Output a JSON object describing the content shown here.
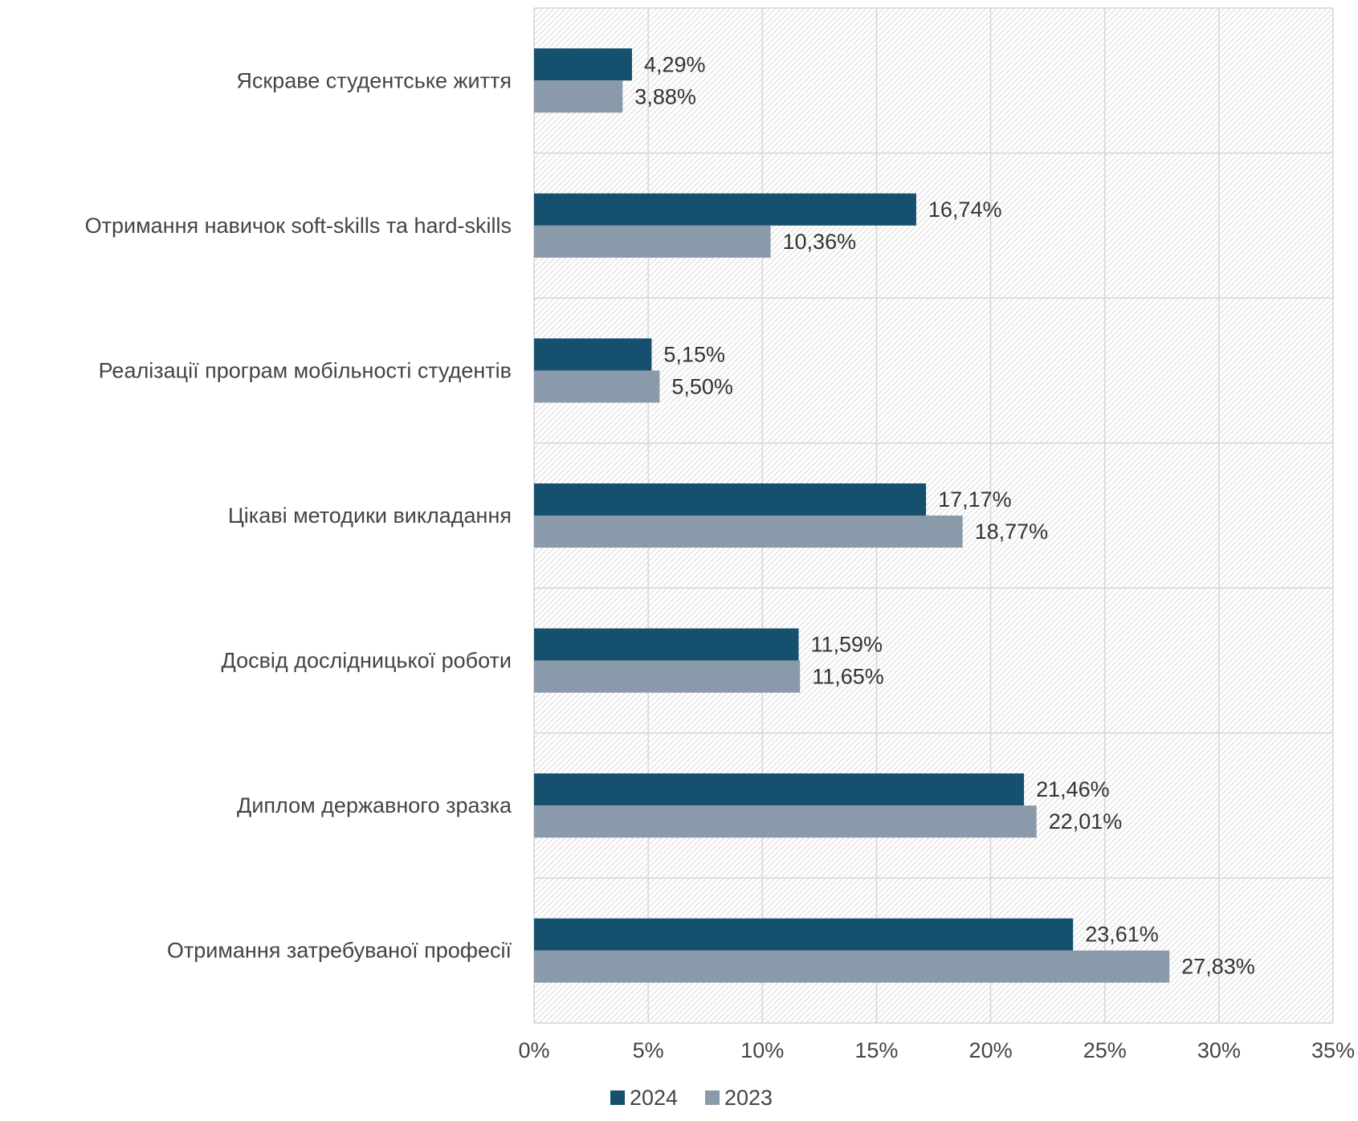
{
  "chart_data": {
    "type": "bar",
    "orientation": "horizontal",
    "title": "",
    "xlabel": "",
    "ylabel": "",
    "categories": [
      "Яскраве студентське життя",
      "Отримання навичок soft-skills та hard-skills",
      "Реалізації програм мобільності студентів",
      "Цікаві методики викладання",
      "Досвід дослідницької роботи",
      "Диплом державного зразка",
      "Отримання затребуваної професії"
    ],
    "series": [
      {
        "name": "2024",
        "color": "#15506e",
        "values": [
          4.29,
          16.74,
          5.15,
          17.17,
          11.59,
          21.46,
          23.61
        ],
        "labels": [
          "4,29%",
          "16,74%",
          "5,15%",
          "17,17%",
          "11,59%",
          "21,46%",
          "23,61%"
        ]
      },
      {
        "name": "2023",
        "color": "#8a9aab",
        "values": [
          3.88,
          10.36,
          5.5,
          18.77,
          11.65,
          22.01,
          27.83
        ],
        "labels": [
          "3,88%",
          "10,36%",
          "5,50%",
          "18,77%",
          "11,65%",
          "22,01%",
          "27,83%"
        ]
      }
    ],
    "xlim": [
      0,
      35
    ],
    "ticks": [
      0,
      5,
      10,
      15,
      20,
      25,
      30,
      35
    ],
    "tick_labels": [
      "0%",
      "5%",
      "10%",
      "15%",
      "20%",
      "25%",
      "30%",
      "35%"
    ],
    "grid": true,
    "plot_background": "hatched light gray",
    "legend": {
      "position": "bottom",
      "entries": [
        "2024",
        "2023"
      ]
    }
  }
}
